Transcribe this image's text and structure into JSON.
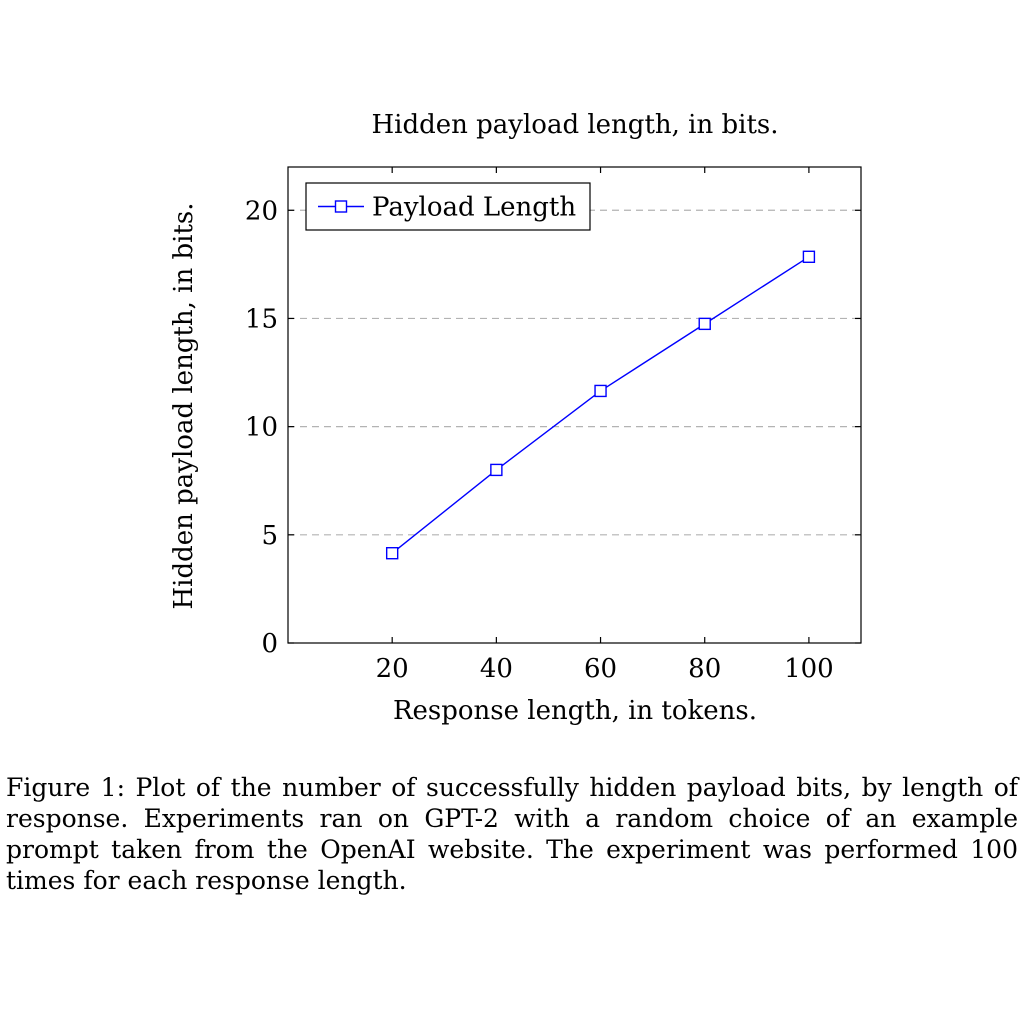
{
  "chart_data": {
    "type": "line",
    "title": "Hidden payload length, in bits.",
    "xlabel": "Response length, in tokens.",
    "ylabel": "Hidden payload length, in bits.",
    "xlim": [
      0,
      110
    ],
    "ylim": [
      0,
      22
    ],
    "x_ticks": [
      20,
      40,
      60,
      80,
      100
    ],
    "y_ticks": [
      0,
      5,
      10,
      15,
      20
    ],
    "grid": "horizontal-dashed",
    "legend_position": "top-left",
    "series": [
      {
        "name": "Payload Length",
        "color": "#0000ff",
        "marker": "square",
        "x": [
          20,
          40,
          60,
          80,
          100
        ],
        "y": [
          4.15,
          8.0,
          11.65,
          14.75,
          17.85
        ]
      }
    ]
  },
  "caption": {
    "text": "Figure 1:  Plot of the number of successfully hidden payload bits, by length of response.  Experiments ran on GPT-2 with a random choice of an example prompt taken from the OpenAI website.  The experiment was performed 100 times for each response length."
  }
}
